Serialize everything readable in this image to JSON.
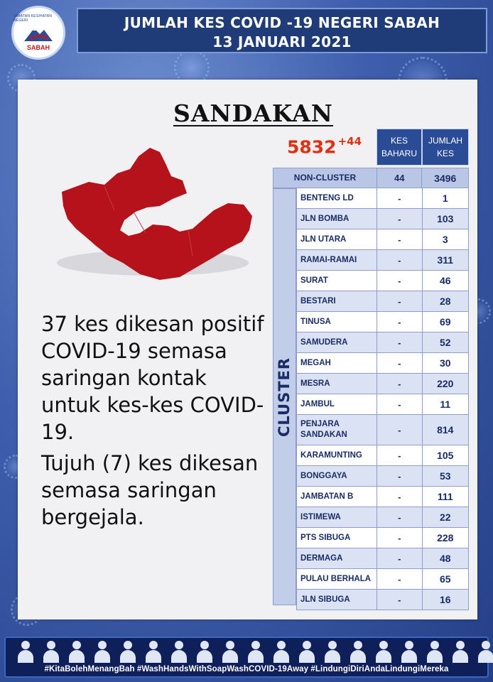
{
  "header": {
    "title_line1": "JUMLAH KES COVID -19 NEGERI SABAH",
    "title_line2": "13 JANUARI 2021"
  },
  "logo": {
    "top_text": "JABATAN KESIHATAN NEGERI",
    "name": "SABAH"
  },
  "district": "SANDAKAN",
  "total": {
    "count": "5832",
    "increase": "+44"
  },
  "table": {
    "col_new": "KES BAHARU",
    "col_total": "JUMLAH KES",
    "non_cluster": {
      "name": "NON-CLUSTER",
      "new": "44",
      "total": "3496"
    },
    "cluster_label": "CLUSTER",
    "clusters": [
      {
        "name": "BENTENG LD",
        "new": "-",
        "total": "1"
      },
      {
        "name": "JLN BOMBA",
        "new": "-",
        "total": "103"
      },
      {
        "name": "JLN UTARA",
        "new": "-",
        "total": "3"
      },
      {
        "name": "RAMAI-RAMAI",
        "new": "-",
        "total": "311"
      },
      {
        "name": "SURAT",
        "new": "-",
        "total": "46"
      },
      {
        "name": "BESTARI",
        "new": "-",
        "total": "28"
      },
      {
        "name": "TINUSA",
        "new": "-",
        "total": "69"
      },
      {
        "name": "SAMUDERA",
        "new": "-",
        "total": "52"
      },
      {
        "name": "MEGAH",
        "new": "-",
        "total": "30"
      },
      {
        "name": "MESRA",
        "new": "-",
        "total": "220"
      },
      {
        "name": "JAMBUL",
        "new": "-",
        "total": "11"
      },
      {
        "name": "PENJARA SANDAKAN",
        "new": "-",
        "total": "814"
      },
      {
        "name": "KARAMUNTING",
        "new": "-",
        "total": "105"
      },
      {
        "name": "BONGGAYA",
        "new": "-",
        "total": "53"
      },
      {
        "name": "JAMBATAN B",
        "new": "-",
        "total": "111"
      },
      {
        "name": "ISTIMEWA",
        "new": "-",
        "total": "22"
      },
      {
        "name": "PTS SIBUGA",
        "new": "-",
        "total": "228"
      },
      {
        "name": "DERMAGA",
        "new": "-",
        "total": "48"
      },
      {
        "name": "PULAU BERHALA",
        "new": "-",
        "total": "65"
      },
      {
        "name": "JLN SIBUGA",
        "new": "-",
        "total": "16"
      }
    ]
  },
  "description": {
    "para1": "37 kes dikesan positif COVID-19 semasa saringan kontak untuk kes-kes COVID-19.",
    "para2": "Tujuh (7) kes dikesan semasa saringan bergejala."
  },
  "footer": {
    "hashtags": "#KitaBolehMenangBah #WashHandsWithSoapWashCOVID-19Away #LindungiDiriAndaLindungiMereka"
  },
  "colors": {
    "map_red": "#b5121b",
    "total_orange": "#e03010",
    "header_blue": "#1f3b78",
    "table_head_blue": "#2a4c96"
  }
}
